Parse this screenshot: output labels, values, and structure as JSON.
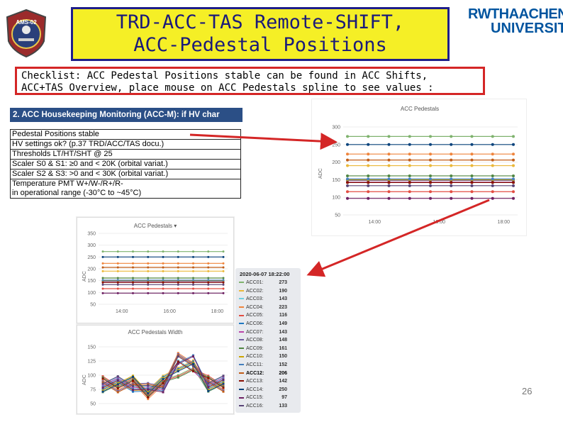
{
  "title": {
    "line1": "TRD-ACC-TAS Remote-SHIFT,",
    "line2": "ACC-Pedestal Positions"
  },
  "logo": {
    "text": "AMS-02"
  },
  "rwth": {
    "line1": "RWTHAACHEN",
    "line2": "UNIVERSITY",
    "color": "#00549f"
  },
  "checklist": {
    "line1": "Checklist: ACC Pedestal Positions stable can be found in ACC Shifts,",
    "line2": "ACC+TAS Overview, place mouse on ACC Pedestals spline to see values :"
  },
  "accm": {
    "header": "2. ACC Housekeeping Monitoring (ACC-M): if HV char",
    "rows": [
      "Pedestal Positions stable",
      "HV settings ok? (p.37 TRD/ACC/TAS docu.)",
      "Thresholds LT/HT/SHT @ 25",
      "Scaler S0 & S1:  ≥0 and < 20K (orbital variat.)",
      "Scaler S2 & S3:  >0 and < 30K (orbital variat.)",
      "Temperature PMT W+/W-/R+/R-",
      "in operational range (-30°C to ~45°C)"
    ]
  },
  "top_chart": {
    "title": "ACC Pedestals",
    "ylabel": "ADC",
    "yticks": [
      "300",
      "250",
      "200",
      "150",
      "100",
      "50"
    ],
    "xticks": [
      "14:00",
      "16:00",
      "18:00"
    ]
  },
  "bottom_chart": {
    "title": "ACC Pedestals ▾",
    "ylabel": "ADC",
    "yticks": [
      "350",
      "300",
      "250",
      "200",
      "150",
      "100",
      "50"
    ],
    "xticks": [
      "14:00",
      "16:00",
      "18:00"
    ]
  },
  "width_chart": {
    "title": "ACC Pedestals Width",
    "ylabel": "ADC",
    "yticks": [
      "150",
      "125",
      "100",
      "75",
      "50"
    ]
  },
  "tooltip": {
    "date": "2020-06-07 18:22:00",
    "rows": [
      {
        "name": "ACC01:",
        "value": "273",
        "color": "#7eb26d"
      },
      {
        "name": "ACC02:",
        "value": "190",
        "color": "#eab839"
      },
      {
        "name": "ACC03:",
        "value": "143",
        "color": "#6ed0e0"
      },
      {
        "name": "ACC04:",
        "value": "223",
        "color": "#ef843c"
      },
      {
        "name": "ACC05:",
        "value": "116",
        "color": "#e24d42"
      },
      {
        "name": "ACC06:",
        "value": "149",
        "color": "#1f78c1"
      },
      {
        "name": "ACC07:",
        "value": "143",
        "color": "#ba43a9"
      },
      {
        "name": "ACC08:",
        "value": "148",
        "color": "#705da0"
      },
      {
        "name": "ACC09:",
        "value": "161",
        "color": "#508642"
      },
      {
        "name": "ACC10:",
        "value": "150",
        "color": "#cca300"
      },
      {
        "name": "ACC11:",
        "value": "152",
        "color": "#447ebc"
      },
      {
        "name": "ACC12:",
        "value": "206",
        "color": "#c15c17"
      },
      {
        "name": "ACC13:",
        "value": "142",
        "color": "#890f02"
      },
      {
        "name": "ACC14:",
        "value": "250",
        "color": "#0a437c"
      },
      {
        "name": "ACC15:",
        "value": "97",
        "color": "#6d1f62"
      },
      {
        "name": "ACC16:",
        "value": "133",
        "color": "#584477"
      }
    ]
  },
  "page_number": "26",
  "colors": {
    "title_bg": "#f5ef26",
    "title_border": "#1e1e8a",
    "checklist_border": "#d42626",
    "arrow": "#d42626",
    "table_header": "#2b4f86"
  }
}
